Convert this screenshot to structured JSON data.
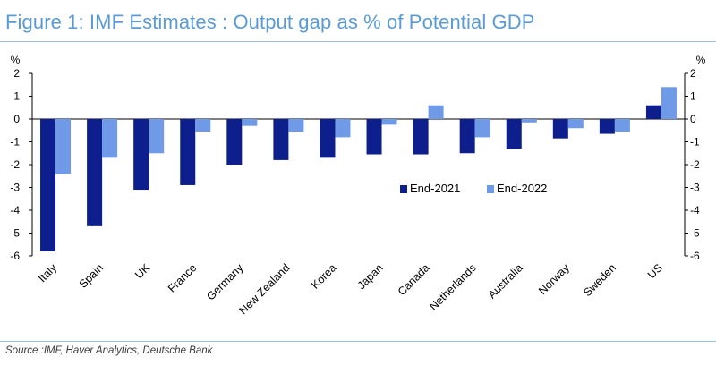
{
  "figure": {
    "title": "Figure 1: IMF Estimates : Output gap as % of Potential GDP",
    "source": "Source :IMF, Haver Analytics, Deutsche Bank"
  },
  "chart_data": {
    "type": "bar",
    "title": "Figure 1: IMF Estimates : Output gap as % of Potential GDP",
    "ylabel_left": "%",
    "ylabel_right": "%",
    "ylim": [
      -6,
      2
    ],
    "yticks": [
      2,
      1,
      0,
      -1,
      -2,
      -3,
      -4,
      -5,
      -6
    ],
    "grid": false,
    "legend_position": "center-right",
    "categories": [
      "Italy",
      "Spain",
      "UK",
      "France",
      "Germany",
      "New Zealand",
      "Korea",
      "Japan",
      "Canada",
      "Netherlands",
      "Australia",
      "Norway",
      "Sweden",
      "US"
    ],
    "series": [
      {
        "name": "End-2021",
        "color": "#0d1f8c",
        "values": [
          -5.8,
          -4.7,
          -3.1,
          -2.9,
          -2.0,
          -1.8,
          -1.7,
          -1.55,
          -1.55,
          -1.5,
          -1.3,
          -0.85,
          -0.65,
          0.6
        ]
      },
      {
        "name": "End-2022",
        "color": "#6f9ae8",
        "values": [
          -2.4,
          -1.7,
          -1.5,
          -0.55,
          -0.3,
          -0.55,
          -0.8,
          -0.25,
          0.6,
          -0.8,
          -0.15,
          -0.4,
          -0.55,
          1.4
        ]
      }
    ]
  }
}
